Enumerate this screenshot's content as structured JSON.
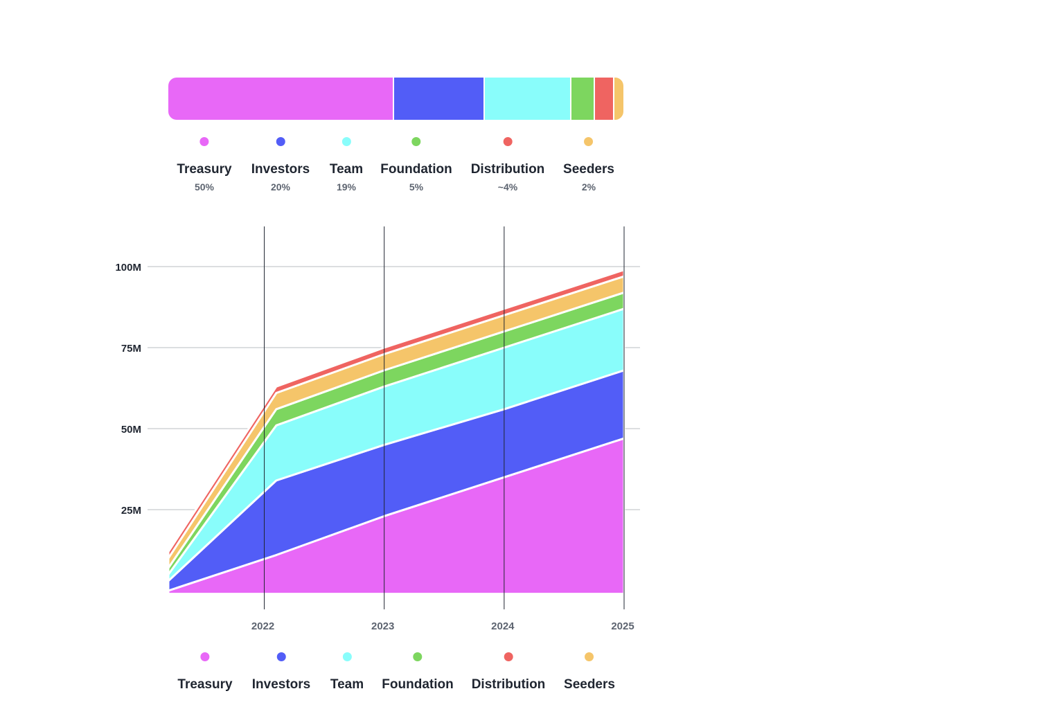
{
  "allocation": [
    {
      "name": "Treasury",
      "pct_label": "50%",
      "share": 50,
      "color": "#e868f7"
    },
    {
      "name": "Investors",
      "pct_label": "20%",
      "share": 20,
      "color": "#525df7"
    },
    {
      "name": "Team",
      "pct_label": "19%",
      "share": 19,
      "color": "#89fdfb"
    },
    {
      "name": "Foundation",
      "pct_label": "5%",
      "share": 5,
      "color": "#7dd65f"
    },
    {
      "name": "Distribution",
      "pct_label": "~4%",
      "share": 4,
      "color": "#ef6461"
    },
    {
      "name": "Seeders",
      "pct_label": "2%",
      "share": 2,
      "color": "#f5c56a"
    }
  ],
  "chart_data": {
    "type": "area",
    "stacked": true,
    "x": [
      2021.2,
      2022.1,
      2023,
      2024,
      2025
    ],
    "xticks": [
      2022,
      2023,
      2024,
      2025
    ],
    "xtick_labels": [
      "2022",
      "2023",
      "2024",
      "2025"
    ],
    "ylim": [
      -2,
      110
    ],
    "yticks": [
      25,
      50,
      75,
      100
    ],
    "ytick_labels": [
      "25M",
      "50M",
      "75M",
      "100M"
    ],
    "grid": true,
    "legend_position": "bottom",
    "series": [
      {
        "name": "Treasury",
        "color": "#e868f7",
        "values": [
          0,
          11,
          23,
          35,
          47
        ]
      },
      {
        "name": "Investors",
        "color": "#525df7",
        "values": [
          3,
          23,
          22,
          21,
          21
        ]
      },
      {
        "name": "Team",
        "color": "#89fdfb",
        "values": [
          2,
          17,
          18,
          19,
          19
        ]
      },
      {
        "name": "Foundation",
        "color": "#7dd65f",
        "values": [
          2,
          5,
          5,
          5,
          5
        ]
      },
      {
        "name": "Seeders",
        "color": "#f5c56a",
        "values": [
          3,
          5,
          5,
          5,
          5
        ]
      },
      {
        "name": "Distribution",
        "color": "#ef6461",
        "values": [
          2,
          2,
          2,
          2,
          2
        ]
      }
    ],
    "legend": [
      "Treasury",
      "Investors",
      "Team",
      "Foundation",
      "Distribution",
      "Seeders"
    ]
  }
}
